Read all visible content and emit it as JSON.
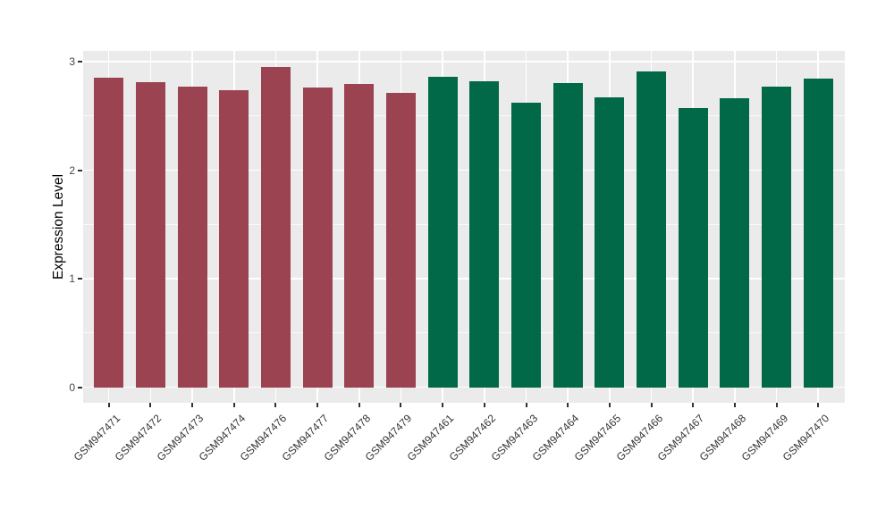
{
  "chart_data": {
    "type": "bar",
    "title": "",
    "xlabel": "",
    "ylabel": "Expression Level",
    "ylim": [
      0,
      3.11
    ],
    "yticks": [
      0,
      1,
      2,
      3
    ],
    "yticks_minor": [
      0.5,
      1.5,
      2.5
    ],
    "grid": "white major and minor gridlines on light gray panel (ggplot theme_gray)",
    "legend_position": "none",
    "categories": [
      "GSM947471",
      "GSM947472",
      "GSM947473",
      "GSM947474",
      "GSM947476",
      "GSM947477",
      "GSM947478",
      "GSM947479",
      "GSM947461",
      "GSM947462",
      "GSM947463",
      "GSM947464",
      "GSM947465",
      "GSM947466",
      "GSM947467",
      "GSM947468",
      "GSM947469",
      "GSM947470"
    ],
    "values": [
      2.85,
      2.81,
      2.77,
      2.74,
      2.95,
      2.76,
      2.79,
      2.71,
      2.86,
      2.82,
      2.62,
      2.8,
      2.67,
      2.91,
      2.57,
      2.66,
      2.77,
      2.84
    ],
    "group_of": [
      "red",
      "red",
      "red",
      "red",
      "red",
      "red",
      "red",
      "red",
      "green",
      "green",
      "green",
      "green",
      "green",
      "green",
      "green",
      "green",
      "green",
      "green"
    ],
    "colors": {
      "red": "#9B4351",
      "green": "#016948"
    },
    "panel_bg": "#EBEBEB",
    "tick_color": "#333333",
    "axis_text_color": "#474747"
  }
}
